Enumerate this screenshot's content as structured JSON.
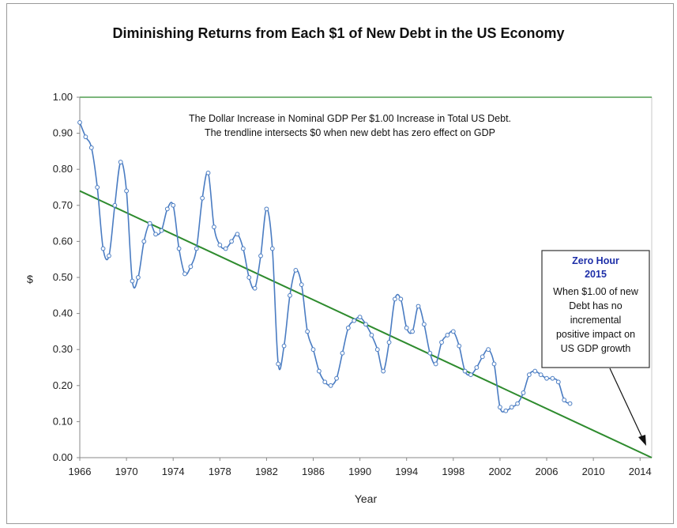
{
  "chart_data": {
    "type": "line",
    "title": "Diminishing Returns from Each $1 of New Debt in the US Economy",
    "xlabel": "Year",
    "ylabel": "$",
    "xlim": [
      1966,
      2015
    ],
    "ylim": [
      0,
      1.0
    ],
    "x_ticks": [
      1966,
      1970,
      1974,
      1978,
      1982,
      1986,
      1990,
      1994,
      1998,
      2002,
      2006,
      2010,
      2014
    ],
    "y_ticks": [
      "0.00",
      "0.10",
      "0.20",
      "0.30",
      "0.40",
      "0.50",
      "0.60",
      "0.70",
      "0.80",
      "0.90",
      "1.00"
    ],
    "grid": false,
    "annotations": [
      "The Dollar Increase in Nominal GDP Per $1.00 Increase in Total US Debt.",
      "The trendline intersects $0 when new debt has zero effect on GDP"
    ],
    "callout": {
      "title_lines": [
        "Zero Hour",
        "2015"
      ],
      "body_lines": [
        "When $1.00 of new",
        "Debt has no",
        "incremental",
        "positive impact on",
        "US GDP growth"
      ]
    },
    "trendline": {
      "x": [
        1966,
        2015
      ],
      "y": [
        0.74,
        0.0
      ],
      "color": "#2e8b2e"
    },
    "series": [
      {
        "color": "#4a7cc2",
        "x": [
          1966.0,
          1966.5,
          1967.0,
          1967.5,
          1968.0,
          1968.5,
          1969.0,
          1969.5,
          1970.0,
          1970.5,
          1971.0,
          1971.5,
          1972.0,
          1972.5,
          1973.0,
          1973.5,
          1974.0,
          1974.5,
          1975.0,
          1975.5,
          1976.0,
          1976.5,
          1977.0,
          1977.5,
          1978.0,
          1978.5,
          1979.0,
          1979.5,
          1980.0,
          1980.5,
          1981.0,
          1981.5,
          1982.0,
          1982.5,
          1983.0,
          1983.5,
          1984.0,
          1984.5,
          1985.0,
          1985.5,
          1986.0,
          1986.5,
          1987.0,
          1987.5,
          1988.0,
          1988.5,
          1989.0,
          1989.5,
          1990.0,
          1990.5,
          1991.0,
          1991.5,
          1992.0,
          1992.5,
          1993.0,
          1993.5,
          1994.0,
          1994.5,
          1995.0,
          1995.5,
          1996.0,
          1996.5,
          1997.0,
          1997.5,
          1998.0,
          1998.5,
          1999.0,
          1999.5,
          2000.0,
          2000.5,
          2001.0,
          2001.5,
          2002.0,
          2002.5,
          2003.0,
          2003.5,
          2004.0,
          2004.5,
          2005.0,
          2005.5,
          2006.0,
          2006.5,
          2007.0,
          2007.5,
          2008.0
        ],
        "y": [
          0.93,
          0.89,
          0.86,
          0.75,
          0.58,
          0.56,
          0.7,
          0.82,
          0.74,
          0.49,
          0.5,
          0.6,
          0.65,
          0.62,
          0.63,
          0.69,
          0.7,
          0.58,
          0.51,
          0.53,
          0.58,
          0.72,
          0.79,
          0.64,
          0.59,
          0.58,
          0.6,
          0.62,
          0.58,
          0.5,
          0.47,
          0.56,
          0.69,
          0.58,
          0.26,
          0.31,
          0.45,
          0.52,
          0.48,
          0.35,
          0.3,
          0.24,
          0.21,
          0.2,
          0.22,
          0.29,
          0.36,
          0.38,
          0.39,
          0.37,
          0.34,
          0.3,
          0.24,
          0.32,
          0.44,
          0.44,
          0.36,
          0.35,
          0.42,
          0.37,
          0.29,
          0.26,
          0.32,
          0.34,
          0.35,
          0.31,
          0.24,
          0.23,
          0.25,
          0.28,
          0.3,
          0.26,
          0.14,
          0.13,
          0.14,
          0.15,
          0.18,
          0.23,
          0.24,
          0.23,
          0.22,
          0.22,
          0.21,
          0.16,
          0.15
        ]
      }
    ]
  }
}
